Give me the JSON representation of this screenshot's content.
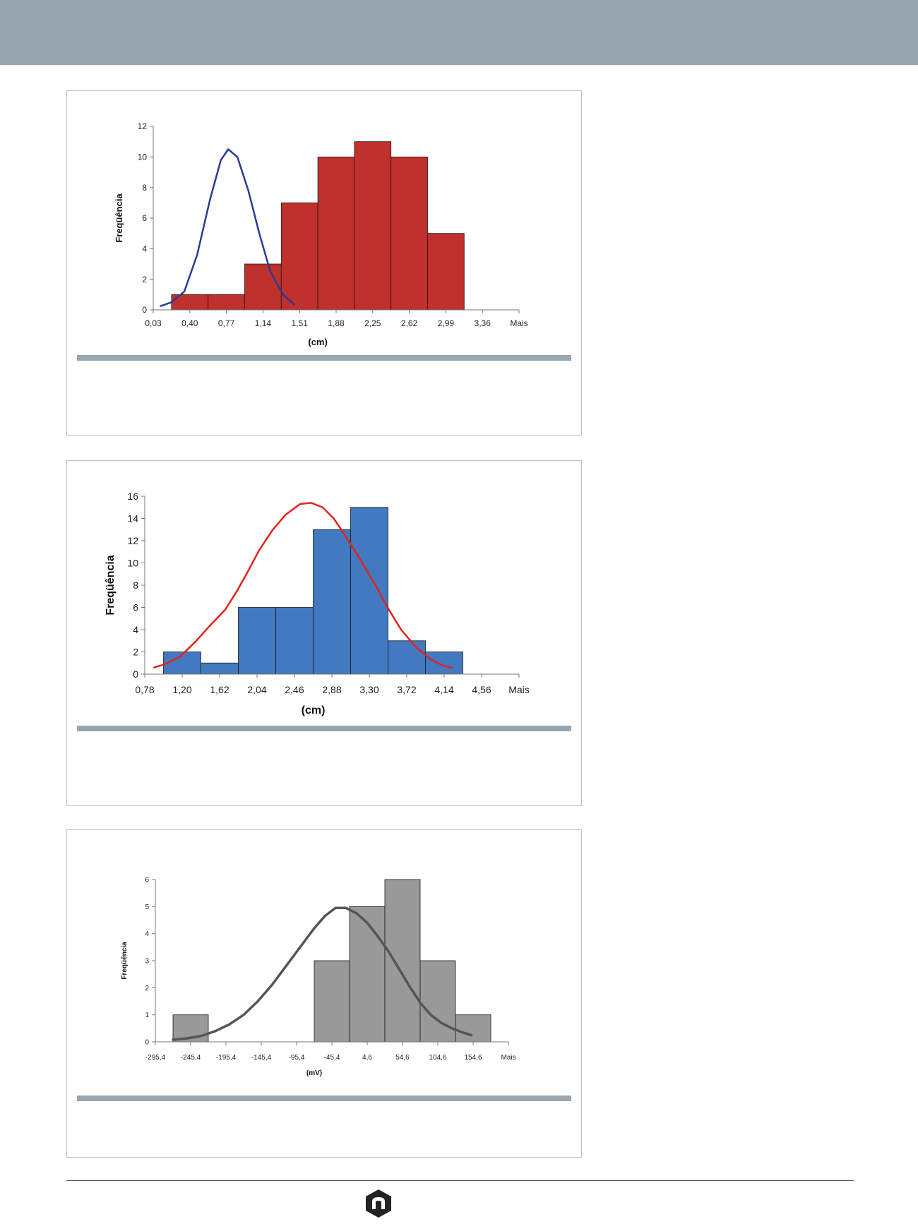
{
  "colors": {
    "header_band": "#97a6b0",
    "caption_bar": "#97a6b0"
  },
  "figures": [
    {
      "caption": "",
      "chart_data": {
        "type": "bar",
        "title": "",
        "xlabel": "(cm)",
        "ylabel": "Freqüência",
        "x_tick_labels": [
          "0,03",
          "0,40",
          "0,77",
          "1,14",
          "1,51",
          "1,88",
          "2,25",
          "2,62",
          "2,99",
          "3,36",
          "Mais"
        ],
        "values": [
          1,
          1,
          3,
          7,
          10,
          11,
          10,
          5
        ],
        "ylim": [
          0,
          12
        ],
        "yticks": [
          0,
          2,
          4,
          6,
          8,
          10,
          12
        ],
        "bar_color": "#c0302c",
        "curve_color": "#2a3a96",
        "curve_width": 2.5,
        "tick_font": 12,
        "label_font": 13,
        "curve": {
          "name": "",
          "x": [
            0.2,
            0.5,
            0.85,
            1.2,
            1.55,
            1.85,
            2.05,
            2.3,
            2.6,
            2.9,
            3.2,
            3.55,
            3.85
          ],
          "y": [
            0.25,
            0.5,
            1.2,
            3.6,
            7.2,
            9.8,
            10.5,
            10.0,
            7.8,
            5.0,
            2.5,
            1.0,
            0.35
          ]
        }
      }
    },
    {
      "caption": "",
      "chart_data": {
        "type": "bar",
        "title": "",
        "xlabel": "(cm)",
        "ylabel": "Freqüência",
        "x_tick_labels": [
          "0,78",
          "1,20",
          "1,62",
          "2,04",
          "2,46",
          "2,88",
          "3,30",
          "3,72",
          "4,14",
          "4,56",
          "Mais"
        ],
        "values": [
          2,
          1,
          6,
          6,
          13,
          15,
          3,
          2
        ],
        "ylim": [
          0,
          16
        ],
        "yticks": [
          0,
          2,
          4,
          6,
          8,
          10,
          12,
          14,
          16
        ],
        "bar_color": "#4279c0",
        "curve_color": "#e3231a",
        "curve_width": 2.5,
        "tick_font": 14,
        "label_font": 16,
        "curve": {
          "name": "",
          "x": [
            0.25,
            0.55,
            0.95,
            1.35,
            1.75,
            2.15,
            2.45,
            2.75,
            3.05,
            3.4,
            3.75,
            4.15,
            4.45,
            4.75,
            5.05,
            5.35,
            5.65,
            5.95,
            6.2,
            6.45,
            6.85,
            7.25,
            7.65,
            7.95,
            8.2
          ],
          "y": [
            0.6,
            0.9,
            1.6,
            2.9,
            4.4,
            5.8,
            7.4,
            9.2,
            11.1,
            12.9,
            14.3,
            15.3,
            15.4,
            15.0,
            14.0,
            12.5,
            10.9,
            9.2,
            7.8,
            6.2,
            4.0,
            2.4,
            1.3,
            0.8,
            0.55
          ]
        }
      }
    },
    {
      "caption": "",
      "chart_data": {
        "type": "bar",
        "title": "",
        "xlabel": "(mV)",
        "ylabel": "Freqüência",
        "x_tick_labels": [
          "-295,4",
          "-245,4",
          "-195,4",
          "-145,4",
          "-95,4",
          "-45,4",
          "4,6",
          "54,6",
          "104,6",
          "154,6",
          "Mais"
        ],
        "values": [
          1,
          0,
          0,
          0,
          3,
          5,
          6,
          3,
          1
        ],
        "ylim": [
          0,
          6
        ],
        "yticks": [
          0,
          1,
          2,
          3,
          4,
          5,
          6
        ],
        "bar_color": "#999999",
        "curve_color": "#555555",
        "curve_width": 3.5,
        "tick_font": 10,
        "label_font": 10,
        "curve": {
          "name": "",
          "x": [
            0.5,
            0.9,
            1.3,
            1.7,
            2.1,
            2.5,
            2.9,
            3.3,
            3.7,
            4.1,
            4.5,
            4.8,
            5.1,
            5.4,
            5.7,
            6.0,
            6.3,
            6.6,
            6.9,
            7.2,
            7.5,
            7.8,
            8.1,
            8.4,
            8.7,
            8.95
          ],
          "y": [
            0.08,
            0.13,
            0.22,
            0.4,
            0.65,
            1.0,
            1.5,
            2.1,
            2.8,
            3.5,
            4.2,
            4.65,
            4.95,
            4.95,
            4.75,
            4.4,
            3.9,
            3.35,
            2.7,
            2.05,
            1.45,
            1.0,
            0.7,
            0.5,
            0.35,
            0.25
          ]
        }
      }
    }
  ]
}
